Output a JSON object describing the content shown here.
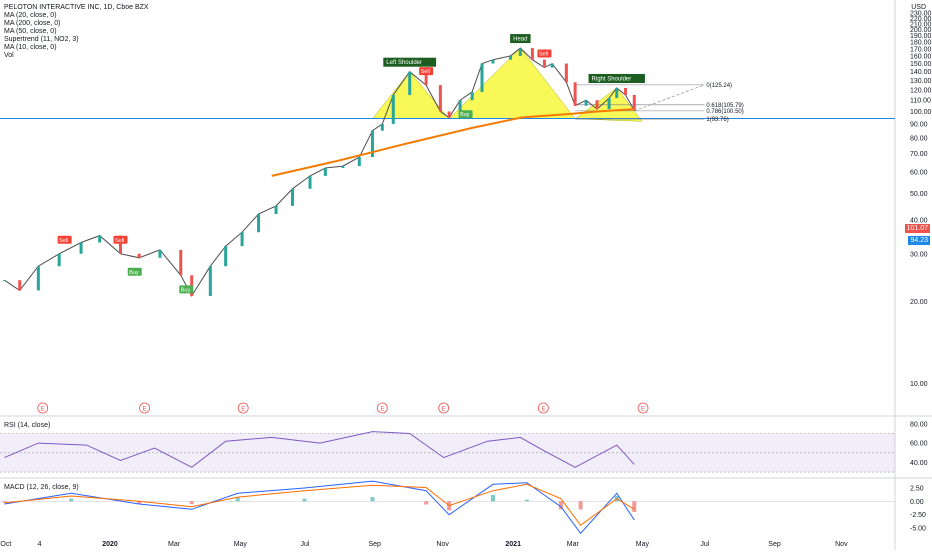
{
  "header": {
    "title": "PELOTON INTERACTIVE INC, 1D, Cboe BZX",
    "indicators": [
      "MA (20, close, 0)",
      "MA (200, close, 0)",
      "MA (50, close, 0)",
      "Supertrend (11, NO2, 3)",
      "MA (10, close, 0)",
      "Vol"
    ]
  },
  "currency": "USD",
  "price_badges": {
    "last": "101.07",
    "line": "94.23"
  },
  "colors": {
    "candle_up": "#26a69a",
    "candle_down": "#ef5350",
    "ma20": "#e53935",
    "ma200": "#f57c00",
    "ma50": "#29b6f6",
    "ma10": "#2962ff",
    "supertrend_up": "#4caf50",
    "supertrend_down": "#f44336",
    "pattern_fill": "#f5f500",
    "horizontal_line": "#1e88e5",
    "rsi": "#7e57c2",
    "macd": "#2962ff",
    "signal": "#ff6d00"
  },
  "chart_data": [
    {
      "type": "line",
      "title": "PELOTON INTERACTIVE INC, 1D, Cboe BZX",
      "xlabel": "",
      "ylabel": "",
      "x_ticks": [
        "Oct",
        "4",
        "2020",
        "Mar",
        "May",
        "Jul",
        "Sep",
        "Nov",
        "2021",
        "Mar",
        "May",
        "Jul",
        "Sep",
        "Nov"
      ],
      "y_ticks": [
        10.0,
        20.0,
        30.0,
        40.0,
        50.0,
        60.0,
        70.0,
        80.0,
        90.0,
        100.0,
        110.0,
        120.0,
        130.0,
        140.0,
        150.0,
        160.0,
        170.0,
        180.0,
        190.0,
        200.0,
        210.0,
        220.0,
        230.0
      ],
      "ylim": [
        8,
        240
      ],
      "y_scale": "log",
      "series": [
        {
          "name": "Close",
          "values": [
            [
              "2019-10-01",
              24
            ],
            [
              "2019-10-15",
              22
            ],
            [
              "2019-11-01",
              27
            ],
            [
              "2019-11-20",
              30
            ],
            [
              "2019-12-10",
              33
            ],
            [
              "2019-12-27",
              35
            ],
            [
              "2020-01-15",
              30
            ],
            [
              "2020-02-01",
              29
            ],
            [
              "2020-02-20",
              31
            ],
            [
              "2020-03-10",
              25
            ],
            [
              "2020-03-20",
              21
            ],
            [
              "2020-04-06",
              27
            ],
            [
              "2020-04-20",
              32
            ],
            [
              "2020-05-05",
              36
            ],
            [
              "2020-05-20",
              42
            ],
            [
              "2020-06-05",
              45
            ],
            [
              "2020-06-20",
              52
            ],
            [
              "2020-07-06",
              58
            ],
            [
              "2020-07-20",
              62
            ],
            [
              "2020-08-05",
              63
            ],
            [
              "2020-08-20",
              68
            ],
            [
              "2020-09-01",
              85
            ],
            [
              "2020-09-10",
              90
            ],
            [
              "2020-09-20",
              115
            ],
            [
              "2020-10-05",
              140
            ],
            [
              "2020-10-20",
              125
            ],
            [
              "2020-11-02",
              100
            ],
            [
              "2020-11-10",
              95
            ],
            [
              "2020-11-20",
              110
            ],
            [
              "2020-12-01",
              118
            ],
            [
              "2020-12-10",
              150
            ],
            [
              "2020-12-20",
              155
            ],
            [
              "2021-01-05",
              160
            ],
            [
              "2021-01-14",
              171
            ],
            [
              "2021-01-25",
              155
            ],
            [
              "2021-02-05",
              145
            ],
            [
              "2021-02-12",
              150
            ],
            [
              "2021-02-25",
              128
            ],
            [
              "2021-03-05",
              105
            ],
            [
              "2021-03-15",
              110
            ],
            [
              "2021-03-25",
              102
            ],
            [
              "2021-04-05",
              112
            ],
            [
              "2021-04-12",
              122
            ],
            [
              "2021-04-20",
              115
            ],
            [
              "2021-04-28",
              101
            ]
          ]
        },
        {
          "name": "MA 200",
          "values": [
            [
              "2020-06-01",
              58
            ],
            [
              "2020-08-01",
              66
            ],
            [
              "2020-10-01",
              76
            ],
            [
              "2020-12-01",
              87
            ],
            [
              "2021-01-15",
              95
            ],
            [
              "2021-03-01",
              98
            ],
            [
              "2021-03-25",
              100
            ],
            [
              "2021-04-28",
              102
            ]
          ]
        }
      ],
      "annotations": [
        {
          "text": "Left Shoulder",
          "x": "2020-10-05"
        },
        {
          "text": "Head",
          "x": "2021-01-14"
        },
        {
          "text": "Right Shoulder",
          "x": "2021-04-12"
        }
      ],
      "signals": [
        {
          "text": "Sell",
          "x": "2019-11-25"
        },
        {
          "text": "Sell",
          "x": "2020-01-15"
        },
        {
          "text": "Buy",
          "x": "2020-01-28"
        },
        {
          "text": "Buy",
          "x": "2020-03-15"
        },
        {
          "text": "Sell",
          "x": "2020-10-20"
        },
        {
          "text": "Buy",
          "x": "2020-11-25"
        },
        {
          "text": "Sell",
          "x": "2021-02-05"
        }
      ],
      "fibonacci": [
        {
          "label": "0(125.24)",
          "level": 0,
          "price": 125.24
        },
        {
          "label": "0.618(105.79)",
          "level": 0.618,
          "price": 105.79
        },
        {
          "label": "0.786(100.50)",
          "level": 0.786,
          "price": 100.5
        },
        {
          "label": "1(93.76)",
          "level": 1,
          "price": 93.76
        }
      ],
      "horizontal_line": 94.23,
      "last_price": 101.07,
      "volume_events": [
        "E",
        "E",
        "E",
        "E",
        "E",
        "E",
        "E"
      ]
    },
    {
      "type": "line",
      "title": "RSI (14, close)",
      "y_ticks": [
        40.0,
        60.0,
        80.0
      ],
      "ylim": [
        28,
        84
      ],
      "series": [
        {
          "name": "RSI",
          "values": [
            [
              "2019-10-01",
              45
            ],
            [
              "2019-11-01",
              60
            ],
            [
              "2019-12-15",
              58
            ],
            [
              "2020-01-15",
              42
            ],
            [
              "2020-02-15",
              55
            ],
            [
              "2020-03-20",
              35
            ],
            [
              "2020-04-20",
              62
            ],
            [
              "2020-06-01",
              66
            ],
            [
              "2020-07-15",
              60
            ],
            [
              "2020-09-01",
              72
            ],
            [
              "2020-10-05",
              70
            ],
            [
              "2020-11-05",
              45
            ],
            [
              "2020-12-15",
              62
            ],
            [
              "2021-01-14",
              66
            ],
            [
              "2021-02-05",
              52
            ],
            [
              "2021-03-05",
              35
            ],
            [
              "2021-04-12",
              58
            ],
            [
              "2021-04-28",
              38
            ]
          ]
        }
      ]
    },
    {
      "type": "line",
      "title": "MACD (12, 26, close, 9)",
      "y_ticks": [
        2.5,
        0.0,
        -2.5,
        -5.0
      ],
      "ylim": [
        -6.5,
        4
      ],
      "series": [
        {
          "name": "MACD",
          "values": [
            [
              "2019-10-01",
              -0.5
            ],
            [
              "2019-12-01",
              1.5
            ],
            [
              "2020-02-01",
              -0.5
            ],
            [
              "2020-03-20",
              -1.5
            ],
            [
              "2020-05-01",
              1.5
            ],
            [
              "2020-07-01",
              2.5
            ],
            [
              "2020-09-01",
              3.8
            ],
            [
              "2020-10-20",
              2.0
            ],
            [
              "2020-11-10",
              -2.5
            ],
            [
              "2020-12-20",
              3.2
            ],
            [
              "2021-01-20",
              3.5
            ],
            [
              "2021-02-20",
              -1.0
            ],
            [
              "2021-03-10",
              -6.0
            ],
            [
              "2021-04-12",
              1.5
            ],
            [
              "2021-04-28",
              -3.5
            ]
          ]
        },
        {
          "name": "Signal",
          "values": [
            [
              "2019-10-01",
              -0.3
            ],
            [
              "2019-12-01",
              1.0
            ],
            [
              "2020-02-01",
              0.0
            ],
            [
              "2020-03-20",
              -1.0
            ],
            [
              "2020-05-01",
              0.8
            ],
            [
              "2020-07-01",
              2.0
            ],
            [
              "2020-09-01",
              3.0
            ],
            [
              "2020-10-20",
              2.6
            ],
            [
              "2020-11-10",
              -0.8
            ],
            [
              "2020-12-20",
              2.0
            ],
            [
              "2021-01-20",
              3.2
            ],
            [
              "2021-02-20",
              0.5
            ],
            [
              "2021-03-10",
              -4.5
            ],
            [
              "2021-04-12",
              0.5
            ],
            [
              "2021-04-28",
              -1.5
            ]
          ]
        }
      ]
    }
  ]
}
